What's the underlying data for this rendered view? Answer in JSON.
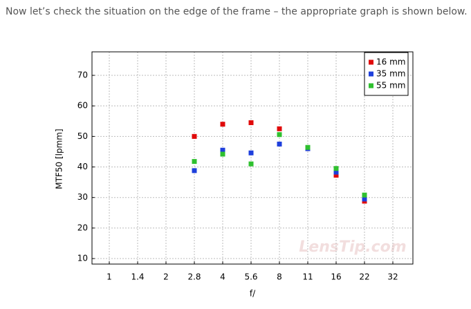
{
  "intro": "Now let’s check the situation on the edge of the frame – the appropriate graph is shown below.",
  "chart_data": {
    "type": "scatter",
    "categories": [
      "1",
      "1.4",
      "2",
      "2.8",
      "4",
      "5.6",
      "8",
      "11",
      "16",
      "22",
      "32"
    ],
    "series": [
      {
        "name": "16 mm",
        "color": "#e00a0a",
        "values": [
          null,
          null,
          null,
          50,
          54,
          54.5,
          52.5,
          46,
          37.3,
          28.8,
          null
        ]
      },
      {
        "name": "35 mm",
        "color": "#1e3fdc",
        "values": [
          null,
          null,
          null,
          38.8,
          45.5,
          44.6,
          47.5,
          46,
          38.3,
          29.5,
          null
        ]
      },
      {
        "name": "55 mm",
        "color": "#2fc02f",
        "values": [
          null,
          null,
          null,
          41.8,
          44.2,
          41,
          50.6,
          46.4,
          39.5,
          30.8,
          null
        ]
      }
    ],
    "ylim": [
      8.2,
      77.7
    ],
    "yticks": [
      10,
      20,
      30,
      40,
      50,
      60,
      70
    ],
    "x_label": "f/",
    "y_label": "MTF50 [lpmm]",
    "grid": true,
    "legend": "top-right",
    "watermark": "LensTip.com"
  }
}
